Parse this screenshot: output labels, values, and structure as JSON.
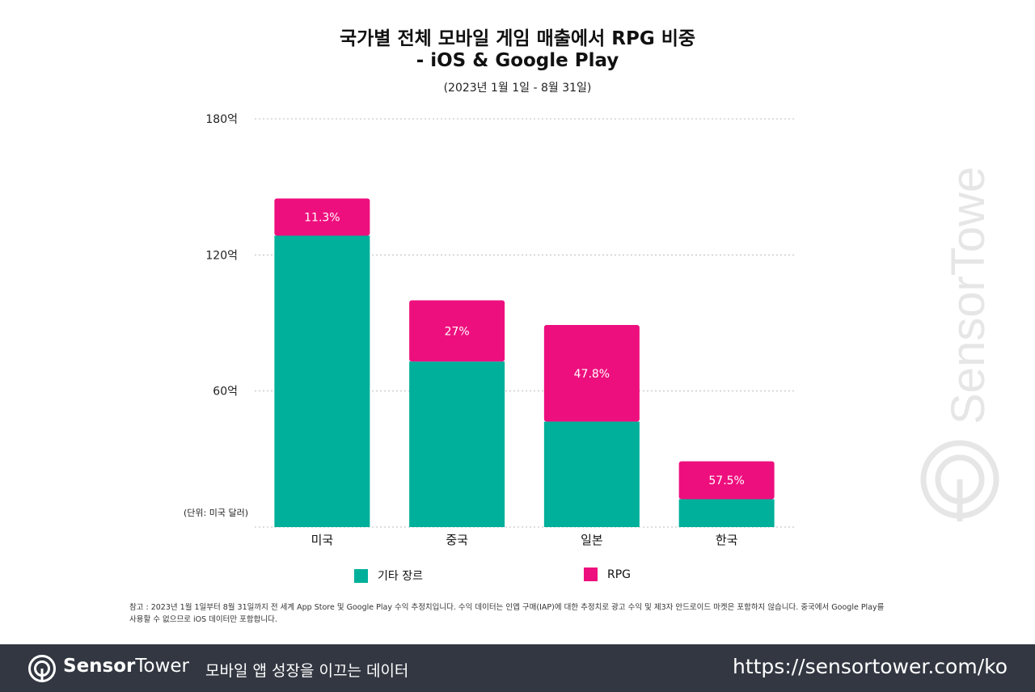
{
  "header": {
    "title_line1": "국가별 전체 모바일 게임 매출에서 RPG 비중",
    "title_line2": "- iOS & Google Play",
    "subtitle": "(2023년 1월 1일 - 8월 31일)"
  },
  "chart_data": {
    "type": "bar",
    "stacked": true,
    "categories": [
      "미국",
      "중국",
      "일본",
      "한국"
    ],
    "series": [
      {
        "name": "기타 장르",
        "color": "#00b09b",
        "values": [
          128.5,
          73.0,
          46.5,
          12.3
        ]
      },
      {
        "name": "RPG",
        "color": "#ee0f7e",
        "values": [
          16.4,
          27.0,
          42.6,
          16.7
        ]
      }
    ],
    "rpg_share_labels": [
      "11.3%",
      "27%",
      "47.8%",
      "57.5%"
    ],
    "ylim": [
      0,
      180
    ],
    "yticks": [
      {
        "value": 60,
        "label": "60억"
      },
      {
        "value": 120,
        "label": "120억"
      },
      {
        "value": 180,
        "label": "180억"
      }
    ],
    "unit_label": "(단위: 미국 달러)",
    "grid": true,
    "legend_position": "bottom"
  },
  "legend": [
    {
      "label": "기타 장르",
      "color": "#00b09b"
    },
    {
      "label": "RPG",
      "color": "#ee0f7e"
    }
  ],
  "note": {
    "line1": "참고 : 2023년 1월 1일부터 8월 31일까지 전 세계 App Store 및 Google Play 수익 추정치입니다. 수익 데이터는 인앱 구매(IAP)에 대한 추정치로 광고 수익 및 제3자 안드로이드 마켓은 포함하지 않습니다. 중국에서 Google Play를",
    "line2": "사용할 수 없으므로 iOS 데이터만 포함합니다."
  },
  "footer": {
    "brand_bold": "Sensor",
    "brand_light": "Tower",
    "tagline": "모바일 앱 성장을 이끄는 데이터",
    "url": "https://sensortower.com/ko",
    "background": "#323741"
  },
  "watermark": {
    "text": "SensorTower"
  }
}
